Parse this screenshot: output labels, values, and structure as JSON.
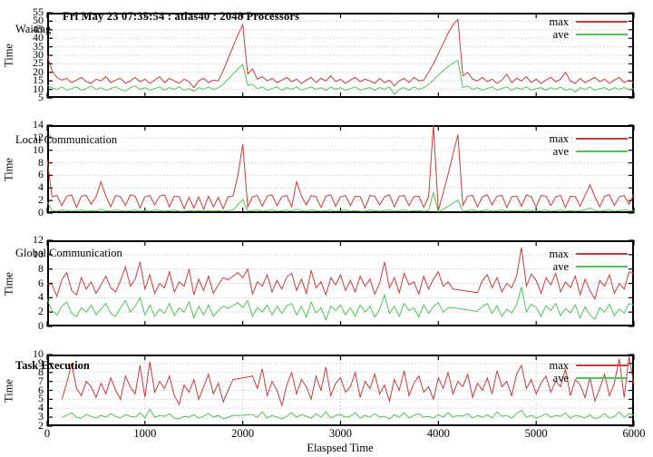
{
  "title": "Fri May 23 07:35:54 : atlas40 : 2048 Processors",
  "xlabel": "Elaspsed Time",
  "legend": {
    "max_label": "max",
    "ave_label": "ave"
  },
  "colors": {
    "max": "#c83c3c",
    "ave": "#4fc457",
    "grid": "#b9b9b9",
    "axis": "#000000",
    "background": "#ffffff"
  },
  "x_axis": {
    "min": 0,
    "max": 6000,
    "ticks": [
      0,
      1000,
      2000,
      3000,
      4000,
      5000,
      6000
    ]
  },
  "chart_data": [
    {
      "type": "line",
      "title": "Waiting",
      "ylabel": "Time",
      "ylim": [
        5,
        55
      ],
      "ytick_step": 5,
      "xgrid": false,
      "x_start": 0,
      "x_step": 50,
      "series": [
        {
          "name": "max",
          "values": [
            30,
            21,
            17,
            15.5,
            16.5,
            14,
            15.5,
            17,
            14.5,
            13.5,
            16,
            15,
            17.5,
            14,
            15.5,
            16.5,
            13.5,
            15,
            17,
            14.5,
            16,
            13.5,
            15.5,
            17.5,
            14,
            16.5,
            15,
            13.5,
            16,
            14.5,
            11,
            15,
            16.5,
            14,
            15.5,
            15,
            21,
            28,
            35,
            42,
            48,
            19,
            22,
            16,
            17.5,
            15,
            16.5,
            14,
            15.5,
            17,
            14.5,
            16,
            13.5,
            15.5,
            17,
            14,
            16.5,
            15,
            18,
            14.5,
            16,
            13.5,
            15.5,
            17,
            14.5,
            16,
            15,
            13.5,
            16.5,
            14,
            15.5,
            12,
            15,
            16.5,
            14,
            17,
            15,
            15.5,
            20,
            25,
            31,
            37,
            43,
            48,
            51,
            18,
            20,
            16,
            15,
            17,
            14.5,
            16,
            13.5,
            15.5,
            19,
            14,
            16.5,
            15,
            17.5,
            14,
            16,
            13.5,
            15.5,
            17,
            14.5,
            16,
            20,
            15,
            13.5,
            16.5,
            14,
            15.5,
            17,
            14.5,
            16,
            13.5,
            15.5,
            17,
            14,
            15.5,
            14
          ]
        },
        {
          "name": "ave",
          "values": [
            12.5,
            11,
            10,
            11.5,
            9.5,
            10.5,
            11.5,
            9.5,
            10.5,
            12,
            10,
            11,
            9.5,
            10.5,
            11.5,
            10,
            9,
            11,
            12,
            10,
            11,
            9.5,
            10.5,
            11.5,
            9.5,
            11,
            10,
            11.5,
            9.5,
            10.5,
            9,
            11,
            10,
            11.5,
            10,
            11,
            13,
            16,
            19,
            22,
            24.5,
            12.5,
            13,
            10.5,
            11.5,
            9.5,
            10.5,
            11.5,
            9.5,
            11,
            10,
            11.5,
            9.5,
            10.5,
            11.5,
            10,
            11,
            9.5,
            11.5,
            10,
            11,
            9.5,
            10.5,
            11.5,
            9.5,
            10.5,
            11,
            9.5,
            11,
            10,
            11.5,
            7,
            10,
            11,
            9.5,
            11.5,
            10,
            11,
            13,
            15.5,
            18.5,
            21,
            23.5,
            25.5,
            27,
            11,
            12,
            10,
            11,
            9.5,
            10.5,
            11.5,
            9.5,
            10.5,
            11.5,
            9.5,
            11,
            10,
            11.5,
            9.5,
            10.5,
            11,
            9.5,
            11,
            10,
            11.5,
            9.5,
            10.5,
            8.5,
            11,
            10,
            11.5,
            9.5,
            10.5,
            11,
            9.5,
            11,
            10,
            11,
            10,
            10.5
          ]
        }
      ]
    },
    {
      "type": "line",
      "title": "Local Communication",
      "ylabel": "Time",
      "ylim": [
        0,
        14
      ],
      "ytick_step": 2,
      "xgrid": false,
      "x_start": 0,
      "x_step": 50,
      "series": [
        {
          "name": "max",
          "values": [
            8.5,
            2.6,
            2.8,
            1.2,
            2.7,
            2.9,
            0.9,
            2.7,
            2.8,
            1.4,
            2.6,
            5,
            2.7,
            1,
            2.8,
            2.6,
            1.2,
            2.9,
            2.7,
            0.8,
            2.6,
            2.8,
            1.3,
            2.7,
            2.9,
            1,
            2.7,
            2.6,
            0.7,
            2.5,
            0.8,
            2.6,
            0.6,
            2.7,
            1,
            2.5,
            0.7,
            2.6,
            2.7,
            6,
            11,
            1,
            2.6,
            2.8,
            1.1,
            2.7,
            2.9,
            1.2,
            2.6,
            2.8,
            1,
            5,
            2.7,
            1.3,
            2.8,
            2.6,
            0.9,
            2.7,
            2.9,
            1.1,
            2.6,
            2.8,
            1.2,
            2.7,
            2.6,
            0.8,
            2.8,
            2.7,
            1.3,
            2.6,
            2.9,
            1,
            2.7,
            2.8,
            1.2,
            2.6,
            2.7,
            0.9,
            2.6,
            14,
            0.4,
            3.2,
            6.2,
            9.4,
            12.5,
            1.2,
            2.7,
            2.8,
            1,
            2.6,
            2.9,
            1.3,
            2.7,
            2.8,
            0.9,
            2.6,
            2.7,
            1.1,
            2.9,
            2.6,
            1,
            2.8,
            2.7,
            1.2,
            2.6,
            2.8,
            0.9,
            2.7,
            2.6,
            1.1,
            2.8,
            4.5,
            2.6,
            1,
            2.7,
            2.9,
            1.2,
            2.6,
            2.8,
            1.4,
            3
          ]
        },
        {
          "name": "ave",
          "values": [
            1.8,
            0.4,
            0.3,
            0.5,
            0.4,
            0.3,
            0.4,
            0.5,
            0.3,
            0.4,
            0.3,
            0.6,
            0.4,
            0.3,
            0.5,
            0.4,
            0.3,
            0.4,
            0.5,
            0.3,
            0.4,
            0.3,
            0.5,
            0.4,
            0.3,
            0.4,
            0.5,
            0.3,
            0.3,
            0.4,
            0.3,
            0.4,
            0.3,
            0.4,
            0.3,
            0.4,
            0.3,
            0.4,
            0.5,
            1.3,
            2.2,
            0.3,
            0.4,
            0.5,
            0.3,
            0.4,
            0.5,
            0.3,
            0.4,
            0.5,
            0.3,
            0.6,
            0.4,
            0.3,
            0.5,
            0.4,
            0.3,
            0.4,
            0.5,
            0.3,
            0.4,
            0.5,
            0.3,
            0.4,
            0.3,
            0.3,
            0.5,
            0.4,
            0.3,
            0.4,
            0.5,
            0.3,
            0.4,
            0.5,
            0.3,
            0.4,
            0.4,
            0.3,
            0.4,
            3.3,
            0.2,
            0.6,
            1.1,
            1.6,
            2.1,
            0.3,
            0.4,
            0.5,
            0.3,
            0.4,
            0.5,
            0.3,
            0.4,
            0.5,
            0.3,
            0.4,
            0.4,
            0.3,
            0.5,
            0.4,
            0.3,
            0.4,
            0.5,
            0.3,
            0.4,
            0.5,
            0.3,
            0.4,
            0.3,
            0.4,
            0.5,
            0.8,
            0.4,
            0.3,
            0.4,
            0.5,
            0.3,
            0.4,
            0.5,
            0.4,
            0.4
          ]
        }
      ]
    },
    {
      "type": "line",
      "title": "Global Communication",
      "ylabel": "Time",
      "ylim": [
        0,
        12
      ],
      "ytick_step": 2,
      "xgrid": false,
      "x_start": 0,
      "x_step": 50,
      "series": [
        {
          "name": "max",
          "values": [
            6,
            5.8,
            4.2,
            6.5,
            7.5,
            5,
            4.4,
            6.8,
            5.2,
            6.2,
            4.6,
            5.8,
            7,
            5.4,
            4.8,
            6.4,
            8.3,
            5.6,
            6.6,
            9,
            5.2,
            7.2,
            4.6,
            6,
            5.4,
            7.6,
            4.8,
            6.2,
            5.6,
            8,
            4.4,
            6.6,
            5,
            7,
            4.6,
            5.8,
            6.8,
            6.5,
            7,
            7.5,
            6.8,
            8,
            4.5,
            6.2,
            5.6,
            7.2,
            4.8,
            6.4,
            5.2,
            6.9,
            7.4,
            5,
            6.6,
            4.6,
            7.8,
            5.4,
            6.2,
            4.4,
            6.8,
            5.8,
            7.2,
            5,
            6.4,
            4.8,
            7,
            5.6,
            6.6,
            4.5,
            6,
            9,
            5.4,
            6.8,
            4.7,
            7.4,
            5.8,
            6.2,
            4.5,
            7,
            5.2,
            6.6,
            7.6,
            5.6,
            6.2,
            5.2,
            5.1,
            5,
            4.9,
            4.8,
            4.7,
            6.4,
            7.2,
            5.4,
            6.8,
            4.8,
            6,
            5.4,
            7,
            11,
            5.6,
            7.3,
            6.4,
            4.6,
            6.8,
            5.8,
            7.4,
            4.8,
            6.2,
            5.4,
            7,
            4.4,
            6.6,
            5,
            3.8,
            6.4,
            5.6,
            7.2,
            4.6,
            6,
            5.2,
            7.6,
            7.4
          ]
        },
        {
          "name": "ave",
          "values": [
            3.8,
            2.2,
            1.6,
            2.8,
            3.4,
            1.8,
            1.4,
            2.6,
            2,
            3,
            1.6,
            2.4,
            3.2,
            1.8,
            1.4,
            2.6,
            3.6,
            2,
            2.8,
            4,
            1.6,
            3,
            1.4,
            2.4,
            1.8,
            3.2,
            1.5,
            2.6,
            2,
            3.4,
            1.2,
            2.8,
            1.6,
            3,
            1.4,
            2.2,
            2.8,
            2.5,
            2.9,
            3.3,
            2.6,
            3.6,
            1.4,
            2.6,
            2,
            3,
            1.6,
            2.8,
            1.8,
            2.9,
            3.2,
            1.6,
            2.8,
            1.3,
            3.4,
            1.9,
            2.6,
            0.9,
            2.8,
            2.2,
            3,
            1.6,
            2.6,
            1.4,
            3,
            2,
            2.8,
            1.3,
            2.4,
            4.4,
            1.8,
            2.8,
            1.4,
            3.2,
            2.2,
            2.6,
            1.3,
            3,
            1.8,
            2.8,
            3.3,
            2,
            2.6,
            2.6,
            2.5,
            2.4,
            2.3,
            2.2,
            2.1,
            2.8,
            3.2,
            1.8,
            2.9,
            1.4,
            2.4,
            1.9,
            3,
            5.5,
            2,
            3.1,
            2.6,
            1.4,
            2.9,
            2.2,
            3.2,
            1.5,
            2.5,
            1.9,
            3,
            1.2,
            2.7,
            1.6,
            1,
            2.6,
            2,
            3.1,
            1.5,
            2.4,
            1.9,
            3.2,
            3
          ]
        }
      ]
    },
    {
      "type": "line",
      "title": "Task Execution",
      "ylabel": "Time",
      "ylim": [
        2,
        10
      ],
      "ytick_step": 1,
      "xgrid": true,
      "x_start": 150,
      "x_step": 50,
      "series": [
        {
          "name": "max",
          "values": [
            5,
            6.8,
            9,
            6.2,
            5.4,
            7,
            6.4,
            5.2,
            6.8,
            5.6,
            7.4,
            6,
            5,
            7.6,
            6.4,
            5.6,
            8.8,
            5.2,
            9.2,
            5.8,
            7,
            6.2,
            7.6,
            5.4,
            4.4,
            6.6,
            5.8,
            7.2,
            5,
            6.4,
            7.8,
            5.6,
            6.8,
            4.7,
            6,
            7.2,
            7.3,
            7.4,
            7.5,
            7.6,
            6.2,
            8.4,
            5.4,
            7,
            6,
            4.3,
            6.6,
            8,
            5.6,
            7.2,
            6.4,
            5,
            7.6,
            6,
            8.6,
            5.4,
            6.8,
            7.4,
            5.8,
            6.4,
            8,
            5.2,
            7,
            6.2,
            7.8,
            5.6,
            6.6,
            4.8,
            7.2,
            6,
            8.2,
            5.4,
            6.8,
            7.6,
            5.8,
            6.4,
            5,
            7.4,
            6.2,
            8,
            5.6,
            7,
            6.4,
            7.8,
            5.2,
            6.8,
            6,
            7.4,
            5.6,
            8.2,
            6.4,
            7,
            5.4,
            7.8,
            8.8,
            6.2,
            7.2,
            5.6,
            6.8,
            7.6,
            5.8,
            7,
            6.4,
            8.4,
            5.4,
            7.2,
            6.6,
            5.2,
            7.5,
            4.8,
            6.2,
            7.8,
            5.4,
            6.8,
            9.5,
            5.2,
            9.8,
            6.6
          ]
        },
        {
          "name": "ave",
          "values": [
            3,
            3.2,
            3.5,
            3,
            2.9,
            3.3,
            3.1,
            2.9,
            3.2,
            3,
            3.4,
            3.1,
            2.9,
            3.3,
            3.1,
            3,
            3.5,
            2.9,
            3.9,
            3,
            3.2,
            3.1,
            3.4,
            2.9,
            2.8,
            3.1,
            3,
            3.3,
            2.9,
            3.1,
            3.4,
            3,
            3.2,
            2.8,
            3,
            3.2,
            3.2,
            3.2,
            3.3,
            3.3,
            3,
            3.6,
            2.9,
            3.2,
            3,
            2.8,
            3.1,
            3.5,
            3,
            3.3,
            3.1,
            2.9,
            3.4,
            3,
            3.6,
            2.9,
            3.2,
            3.3,
            3,
            3.1,
            3.5,
            2.9,
            3.2,
            3,
            3.4,
            3,
            3.1,
            2.8,
            3.3,
            3,
            3.5,
            2.9,
            3.2,
            3.4,
            3,
            3.1,
            2.9,
            3.3,
            3,
            3.5,
            3,
            3.2,
            3.1,
            3.4,
            2.9,
            3.2,
            3,
            3.3,
            2.9,
            3.6,
            3.1,
            3.2,
            2.9,
            3.4,
            3.8,
            3,
            3.2,
            2.9,
            3.1,
            3.4,
            3,
            3.2,
            3.1,
            3.5,
            2.9,
            3.2,
            3.1,
            2.9,
            3.3,
            2.8,
            3,
            3.4,
            2.9,
            3.1,
            3.6,
            3,
            3.4,
            3.2
          ]
        }
      ]
    }
  ]
}
